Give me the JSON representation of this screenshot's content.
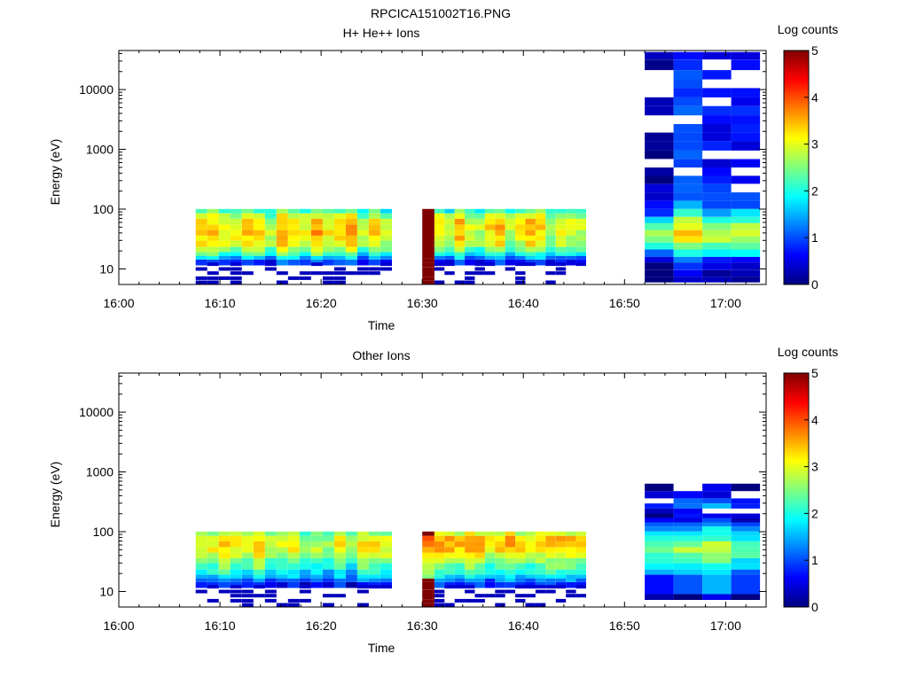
{
  "figure": {
    "title": "RPCICA151002T16.PNG"
  },
  "colors": {
    "background": "#ffffff",
    "axis": "#000000",
    "colormap_stops": [
      "#00007f",
      "#0000ff",
      "#007fff",
      "#00ffff",
      "#7fff7f",
      "#ffff00",
      "#ff7f00",
      "#ff0000",
      "#7f0000"
    ]
  },
  "chart_data": [
    {
      "type": "heatmap",
      "title": "H+ He++ Ions",
      "xlabel": "Time",
      "ylabel": "Energy (eV)",
      "x_ticks": [
        "16:00",
        "16:10",
        "16:20",
        "16:30",
        "16:40",
        "16:50",
        "17:00"
      ],
      "x_tick_minutes": [
        0,
        10,
        20,
        30,
        40,
        50,
        60
      ],
      "xlim_minutes": [
        0,
        64
      ],
      "y_scale": "log",
      "ylim": [
        5.5,
        45000
      ],
      "y_ticks": [
        10,
        100,
        1000,
        10000
      ],
      "y_tick_labels": [
        "10",
        "100",
        "1000",
        "10000"
      ],
      "colorbar": {
        "label": "Log counts",
        "range": [
          0,
          5
        ],
        "ticks": [
          "0",
          "1",
          "2",
          "3",
          "4",
          "5"
        ]
      },
      "segments": [
        {
          "t_start": 7.6,
          "t_end": 27.0,
          "columns": 17,
          "profile": [
            {
              "e": 95,
              "v": 2.2
            },
            {
              "e": 80,
              "v": 2.7
            },
            {
              "e": 65,
              "v": 3.0
            },
            {
              "e": 52,
              "v": 3.1
            },
            {
              "e": 42,
              "v": 3.2
            },
            {
              "e": 34,
              "v": 3.1
            },
            {
              "e": 28,
              "v": 3.0
            },
            {
              "e": 22,
              "v": 2.6
            },
            {
              "e": 18,
              "v": 2.1
            },
            {
              "e": 15.5,
              "v": 1.5
            },
            {
              "e": 13.5,
              "v": 0.8
            }
          ],
          "sparse": [
            {
              "e": 12,
              "v": 0.4
            },
            {
              "e": 10,
              "v": 0.3
            },
            {
              "e": 8.5,
              "v": 0.3
            },
            {
              "e": 7,
              "v": 0.3
            },
            {
              "e": 6,
              "v": 0.3
            }
          ]
        },
        {
          "t_start": 30.0,
          "t_end": 31.2,
          "columns": 1,
          "profile": [
            {
              "e": 95,
              "v": 5.0
            },
            {
              "e": 16,
              "v": 5.0
            },
            {
              "e": 14,
              "v": 5.0
            },
            {
              "e": 12,
              "v": 5.0
            },
            {
              "e": 10,
              "v": 5.0
            },
            {
              "e": 8.5,
              "v": 5.0
            },
            {
              "e": 7,
              "v": 5.0
            },
            {
              "e": 6,
              "v": 5.0
            }
          ],
          "sparse": []
        },
        {
          "t_start": 31.2,
          "t_end": 46.2,
          "columns": 15,
          "profile": [
            {
              "e": 95,
              "v": 2.3
            },
            {
              "e": 80,
              "v": 2.9
            },
            {
              "e": 65,
              "v": 3.2
            },
            {
              "e": 52,
              "v": 3.2
            },
            {
              "e": 42,
              "v": 3.1
            },
            {
              "e": 34,
              "v": 3.0
            },
            {
              "e": 28,
              "v": 2.9
            },
            {
              "e": 22,
              "v": 2.5
            },
            {
              "e": 18,
              "v": 2.0
            },
            {
              "e": 15.5,
              "v": 1.4
            },
            {
              "e": 13.5,
              "v": 0.8
            }
          ],
          "sparse": [
            {
              "e": 12,
              "v": 0.4
            },
            {
              "e": 10,
              "v": 0.3
            },
            {
              "e": 8.5,
              "v": 0.3
            },
            {
              "e": 7,
              "v": 0.3
            },
            {
              "e": 6,
              "v": 0.3
            }
          ]
        },
        {
          "t_start": 52.0,
          "t_end": 63.4,
          "columns": 4,
          "profile": [
            {
              "e": 40000,
              "v": 0.5
            },
            {
              "e": 30000,
              "v": 0.6
            },
            {
              "e": 20000,
              "v": 0.5
            },
            {
              "e": 14000,
              "v": 0.5
            },
            {
              "e": 10000,
              "v": 0.5
            },
            {
              "e": 7000,
              "v": 0.5
            },
            {
              "e": 5000,
              "v": 0.6
            },
            {
              "e": 3500,
              "v": 0.5
            },
            {
              "e": 2500,
              "v": 0.5
            },
            {
              "e": 1800,
              "v": 0.5
            },
            {
              "e": 1300,
              "v": 0.6
            },
            {
              "e": 900,
              "v": 0.5
            },
            {
              "e": 650,
              "v": 0.5
            },
            {
              "e": 470,
              "v": 0.5
            },
            {
              "e": 340,
              "v": 0.6
            },
            {
              "e": 250,
              "v": 0.7
            },
            {
              "e": 180,
              "v": 0.8
            },
            {
              "e": 130,
              "v": 1.0
            },
            {
              "e": 95,
              "v": 1.5
            },
            {
              "e": 70,
              "v": 2.2
            },
            {
              "e": 55,
              "v": 2.7
            },
            {
              "e": 42,
              "v": 2.9
            },
            {
              "e": 33,
              "v": 2.7
            },
            {
              "e": 26,
              "v": 2.3
            },
            {
              "e": 20,
              "v": 1.7
            },
            {
              "e": 15,
              "v": 0.8
            },
            {
              "e": 12,
              "v": 0.4
            },
            {
              "e": 9,
              "v": 0.2
            },
            {
              "e": 7,
              "v": 0.15
            }
          ],
          "sparse": []
        }
      ]
    },
    {
      "type": "heatmap",
      "title": "Other Ions",
      "xlabel": "Time",
      "ylabel": "Energy (eV)",
      "x_ticks": [
        "16:00",
        "16:10",
        "16:20",
        "16:30",
        "16:40",
        "16:50",
        "17:00"
      ],
      "x_tick_minutes": [
        0,
        10,
        20,
        30,
        40,
        50,
        60
      ],
      "xlim_minutes": [
        0,
        64
      ],
      "y_scale": "log",
      "ylim": [
        5.5,
        45000
      ],
      "y_ticks": [
        10,
        100,
        1000,
        10000
      ],
      "y_tick_labels": [
        "10",
        "100",
        "1000",
        "10000"
      ],
      "colorbar": {
        "label": "Log counts",
        "range": [
          0,
          5
        ],
        "ticks": [
          "0",
          "1",
          "2",
          "3",
          "4",
          "5"
        ]
      },
      "segments": [
        {
          "t_start": 7.6,
          "t_end": 27.0,
          "columns": 17,
          "profile": [
            {
              "e": 95,
              "v": 2.6
            },
            {
              "e": 80,
              "v": 2.9
            },
            {
              "e": 65,
              "v": 3.1
            },
            {
              "e": 52,
              "v": 3.0
            },
            {
              "e": 42,
              "v": 2.8
            },
            {
              "e": 34,
              "v": 2.5
            },
            {
              "e": 28,
              "v": 2.2
            },
            {
              "e": 22,
              "v": 1.9
            },
            {
              "e": 18,
              "v": 1.6
            },
            {
              "e": 15.5,
              "v": 1.2
            },
            {
              "e": 13.5,
              "v": 0.7
            }
          ],
          "sparse": [
            {
              "e": 12,
              "v": 0.4
            },
            {
              "e": 10,
              "v": 0.3
            },
            {
              "e": 8.5,
              "v": 0.3
            },
            {
              "e": 7,
              "v": 0.3
            },
            {
              "e": 6,
              "v": 0.3
            }
          ]
        },
        {
          "t_start": 30.0,
          "t_end": 31.2,
          "columns": 1,
          "profile": [
            {
              "e": 95,
              "v": 5.0
            },
            {
              "e": 80,
              "v": 4.0
            },
            {
              "e": 65,
              "v": 3.8
            },
            {
              "e": 52,
              "v": 3.5
            },
            {
              "e": 42,
              "v": 3.2
            },
            {
              "e": 34,
              "v": 3.0
            },
            {
              "e": 28,
              "v": 2.8
            },
            {
              "e": 22,
              "v": 2.7
            },
            {
              "e": 18,
              "v": 2.5
            },
            {
              "e": 15.5,
              "v": 5.0
            },
            {
              "e": 13.5,
              "v": 5.0
            },
            {
              "e": 12,
              "v": 5.0
            },
            {
              "e": 10,
              "v": 5.0
            },
            {
              "e": 8.5,
              "v": 5.0
            },
            {
              "e": 7,
              "v": 5.0
            },
            {
              "e": 6,
              "v": 5.0
            }
          ],
          "sparse": []
        },
        {
          "t_start": 31.2,
          "t_end": 46.2,
          "columns": 15,
          "profile": [
            {
              "e": 95,
              "v": 2.7
            },
            {
              "e": 80,
              "v": 3.2
            },
            {
              "e": 65,
              "v": 3.3
            },
            {
              "e": 52,
              "v": 3.1
            },
            {
              "e": 42,
              "v": 2.8
            },
            {
              "e": 34,
              "v": 2.5
            },
            {
              "e": 28,
              "v": 2.2
            },
            {
              "e": 22,
              "v": 1.9
            },
            {
              "e": 18,
              "v": 1.5
            },
            {
              "e": 15.5,
              "v": 1.1
            },
            {
              "e": 13.5,
              "v": 0.7
            }
          ],
          "sparse": [
            {
              "e": 12,
              "v": 0.4
            },
            {
              "e": 10,
              "v": 0.3
            },
            {
              "e": 8.5,
              "v": 0.3
            },
            {
              "e": 7,
              "v": 0.3
            },
            {
              "e": 6,
              "v": 0.3
            }
          ]
        },
        {
          "t_start": 52.0,
          "t_end": 63.4,
          "columns": 4,
          "profile": [
            {
              "e": 600,
              "v": 0.4
            },
            {
              "e": 450,
              "v": 0.5
            },
            {
              "e": 340,
              "v": 1.0
            },
            {
              "e": 280,
              "v": 1.2
            },
            {
              "e": 230,
              "v": 0.8
            },
            {
              "e": 190,
              "v": 0.6
            },
            {
              "e": 160,
              "v": 0.8
            },
            {
              "e": 135,
              "v": 1.2
            },
            {
              "e": 115,
              "v": 1.6
            },
            {
              "e": 95,
              "v": 1.9
            },
            {
              "e": 80,
              "v": 2.2
            },
            {
              "e": 65,
              "v": 2.6
            },
            {
              "e": 52,
              "v": 2.9
            },
            {
              "e": 42,
              "v": 2.6
            },
            {
              "e": 34,
              "v": 2.2
            },
            {
              "e": 28,
              "v": 2.0
            },
            {
              "e": 22,
              "v": 1.7
            },
            {
              "e": 18,
              "v": 1.2
            },
            {
              "e": 8.5,
              "v": 0.3
            }
          ],
          "sparse": []
        }
      ]
    }
  ]
}
